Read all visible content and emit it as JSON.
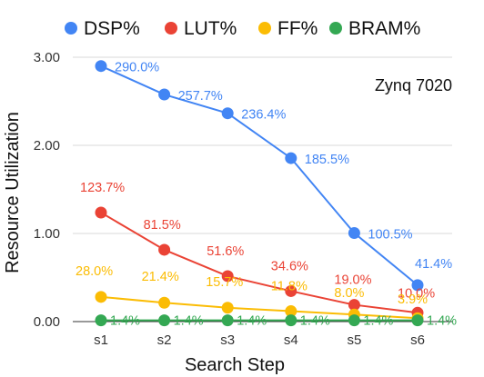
{
  "chart_data": {
    "type": "line",
    "title": "",
    "xlabel": "Search Step",
    "ylabel": "Resource Utilization",
    "categories": [
      "s1",
      "s2",
      "s3",
      "s4",
      "s5",
      "s6"
    ],
    "ylim": [
      0,
      3
    ],
    "yticks": [
      0,
      1,
      2,
      3
    ],
    "ytick_labels": [
      "0.00",
      "1.00",
      "2.00",
      "3.00"
    ],
    "grid": true,
    "legend_position": "top",
    "annotation": "Zynq 7020",
    "series": [
      {
        "name": "DSP%",
        "color": "#4285f4",
        "values": [
          2.9,
          2.577,
          2.364,
          1.855,
          1.005,
          0.414
        ],
        "labels": [
          "290.0%",
          "257.7%",
          "236.4%",
          "185.5%",
          "100.5%",
          "41.4%"
        ]
      },
      {
        "name": "LUT%",
        "color": "#ea4335",
        "values": [
          1.237,
          0.815,
          0.516,
          0.346,
          0.19,
          0.1
        ],
        "labels": [
          "123.7%",
          "81.5%",
          "51.6%",
          "34.6%",
          "19.0%",
          "10.0%"
        ]
      },
      {
        "name": "FF%",
        "color": "#fbbc04",
        "values": [
          0.28,
          0.214,
          0.157,
          0.118,
          0.08,
          0.039
        ],
        "labels": [
          "28.0%",
          "21.4%",
          "15.7%",
          "11.8%",
          "8.0%",
          "3.9%"
        ]
      },
      {
        "name": "BRAM%",
        "color": "#34a853",
        "values": [
          0.014,
          0.014,
          0.014,
          0.014,
          0.014,
          0.014
        ],
        "labels": [
          "1.4%",
          "1.4%",
          "1.4%",
          "1.4%",
          "1.4%",
          "1.4%"
        ]
      }
    ]
  }
}
